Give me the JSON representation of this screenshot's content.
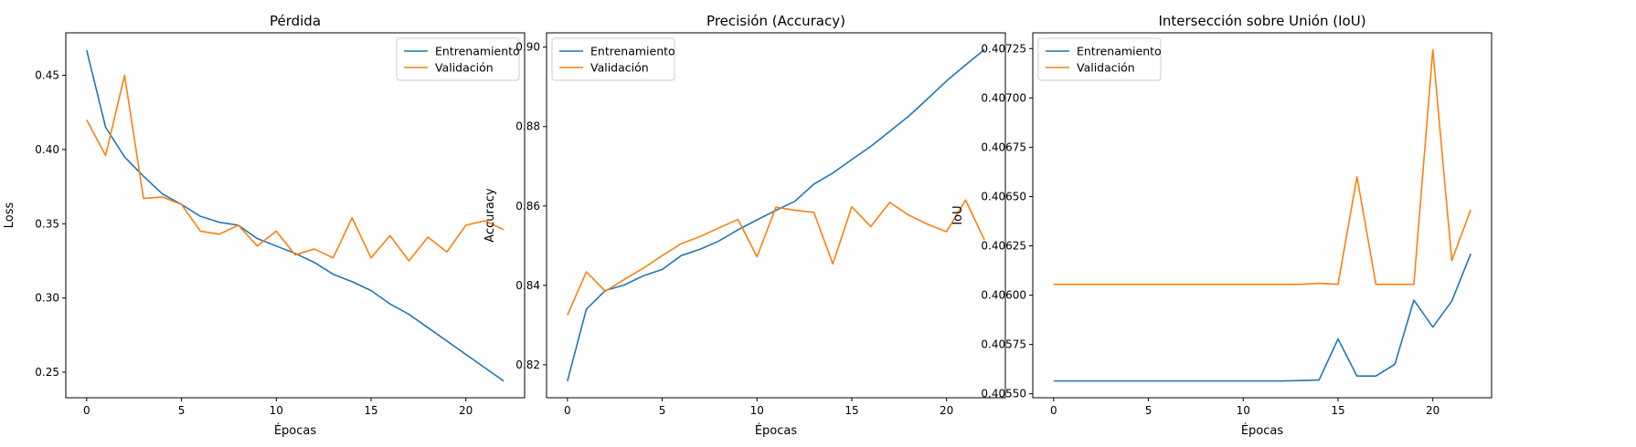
{
  "colors": {
    "train": "#1f77b4",
    "val": "#ff7f0e"
  },
  "chart_data": [
    {
      "type": "line",
      "title": "Pérdida",
      "xlabel": "Épocas",
      "ylabel": "Loss",
      "xlim": [
        -1.1,
        23.1
      ],
      "ylim": [
        0.2328,
        0.4786
      ],
      "xticks": [
        0,
        5,
        10,
        15,
        20
      ],
      "yticks": [
        0.25,
        0.3,
        0.35,
        0.4,
        0.45
      ],
      "ytick_decimals": 2,
      "legend": "upper-right",
      "grid": false,
      "x": [
        0,
        1,
        2,
        3,
        4,
        5,
        6,
        7,
        8,
        9,
        10,
        11,
        12,
        13,
        14,
        15,
        16,
        17,
        18,
        19,
        20,
        21,
        22
      ],
      "series": [
        {
          "name": "Entrenamiento",
          "color": "#1f77b4",
          "values": [
            0.467,
            0.415,
            0.395,
            0.382,
            0.37,
            0.363,
            0.355,
            0.351,
            0.349,
            0.34,
            0.335,
            0.33,
            0.324,
            0.316,
            0.311,
            0.305,
            0.296,
            0.289,
            0.28,
            0.271,
            0.262,
            0.253,
            0.244
          ]
        },
        {
          "name": "Validación",
          "color": "#ff7f0e",
          "values": [
            0.42,
            0.396,
            0.45,
            0.367,
            0.368,
            0.363,
            0.345,
            0.343,
            0.349,
            0.335,
            0.345,
            0.329,
            0.333,
            0.327,
            0.354,
            0.327,
            0.342,
            0.325,
            0.341,
            0.331,
            0.349,
            0.352,
            0.346
          ]
        }
      ]
    },
    {
      "type": "line",
      "title": "Precisión (Accuracy)",
      "xlabel": "Épocas",
      "ylabel": "Accuracy",
      "xlim": [
        -1.1,
        23.1
      ],
      "ylim": [
        0.8117,
        0.9036
      ],
      "xticks": [
        0,
        5,
        10,
        15,
        20
      ],
      "yticks": [
        0.82,
        0.84,
        0.86,
        0.88,
        0.9
      ],
      "ytick_decimals": 2,
      "legend": "upper-left",
      "grid": false,
      "x": [
        0,
        1,
        2,
        3,
        4,
        5,
        6,
        7,
        8,
        9,
        10,
        11,
        12,
        13,
        14,
        15,
        16,
        17,
        18,
        19,
        20,
        21,
        22
      ],
      "series": [
        {
          "name": "Entrenamiento",
          "color": "#1f77b4",
          "values": [
            0.8159,
            0.834,
            0.8387,
            0.8401,
            0.8424,
            0.844,
            0.8475,
            0.8491,
            0.8512,
            0.854,
            0.8565,
            0.8589,
            0.8612,
            0.8655,
            0.8683,
            0.8717,
            0.875,
            0.8788,
            0.8826,
            0.887,
            0.8915,
            0.8955,
            0.8994
          ]
        },
        {
          "name": "Validación",
          "color": "#ff7f0e",
          "values": [
            0.8325,
            0.8434,
            0.8385,
            0.8415,
            0.8443,
            0.8475,
            0.8505,
            0.8523,
            0.8545,
            0.8566,
            0.8472,
            0.8597,
            0.8589,
            0.8584,
            0.8454,
            0.8598,
            0.8548,
            0.8609,
            0.8577,
            0.8554,
            0.8535,
            0.8615,
            0.8514
          ]
        }
      ]
    },
    {
      "type": "line",
      "title": "Intersección sobre Unión (IoU)",
      "xlabel": "Épocas",
      "ylabel": "IoU",
      "xlim": [
        -1.1,
        23.1
      ],
      "ylim": [
        0.40548,
        0.40733
      ],
      "xticks": [
        0,
        5,
        10,
        15,
        20
      ],
      "yticks": [
        0.4055,
        0.40575,
        0.406,
        0.40625,
        0.4065,
        0.40675,
        0.407,
        0.40725
      ],
      "ytick_decimals": 5,
      "legend": "upper-left",
      "grid": false,
      "x": [
        0,
        1,
        2,
        3,
        4,
        5,
        6,
        7,
        8,
        9,
        10,
        11,
        12,
        13,
        14,
        15,
        16,
        17,
        18,
        19,
        20,
        21,
        22
      ],
      "series": [
        {
          "name": "Entrenamiento",
          "color": "#1f77b4",
          "values": [
            0.405565,
            0.405565,
            0.405565,
            0.405565,
            0.405565,
            0.405565,
            0.405565,
            0.405565,
            0.405565,
            0.405565,
            0.405565,
            0.405565,
            0.405565,
            0.405567,
            0.40557,
            0.405778,
            0.40559,
            0.40559,
            0.40565,
            0.405975,
            0.405838,
            0.40597,
            0.40621
          ]
        },
        {
          "name": "Validación",
          "color": "#ff7f0e",
          "values": [
            0.406055,
            0.406055,
            0.406055,
            0.406055,
            0.406055,
            0.406055,
            0.406055,
            0.406055,
            0.406055,
            0.406055,
            0.406055,
            0.406055,
            0.406055,
            0.406055,
            0.40606,
            0.406055,
            0.4066,
            0.406055,
            0.406055,
            0.406055,
            0.407245,
            0.406175,
            0.406433
          ]
        }
      ]
    }
  ]
}
